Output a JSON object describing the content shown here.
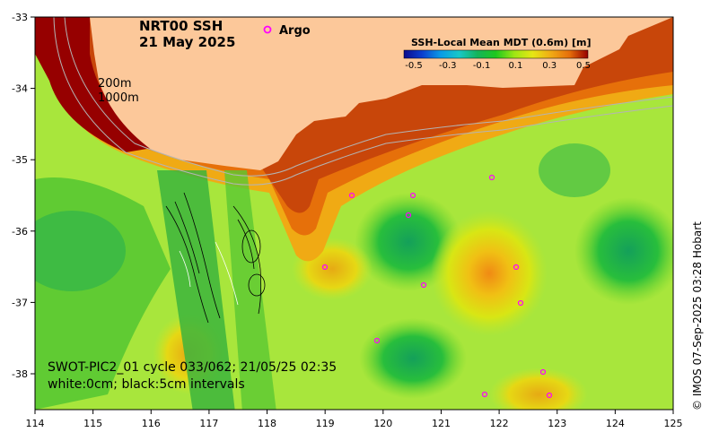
{
  "title": {
    "product": "NRT00 SSH",
    "date": "21 May 2025"
  },
  "legend": {
    "symbol": "o",
    "label": "Argo",
    "color": "#ff00ff"
  },
  "depth_labels": [
    "200m",
    "1000m"
  ],
  "colorbar": {
    "title": "SSH-Local Mean MDT (0.6m) [m]",
    "ticks": [
      "-0.5",
      "-0.3",
      "-0.1",
      "0.1",
      "0.3",
      "0.5"
    ],
    "colors": [
      "#0a0a8c",
      "#0a3fd0",
      "#0a9be6",
      "#18c8c8",
      "#14b45a",
      "#1ec81e",
      "#9ee614",
      "#e6e614",
      "#f0aa14",
      "#e66e0a",
      "#c83c0a",
      "#960000"
    ]
  },
  "axes": {
    "x_ticks": [
      "114",
      "115",
      "116",
      "117",
      "118",
      "119",
      "120",
      "121",
      "122",
      "123",
      "124",
      "125"
    ],
    "y_ticks": [
      "-33",
      "-34",
      "-35",
      "-36",
      "-37",
      "-38"
    ]
  },
  "swot_note": {
    "line1": "SWOT-PIC2_01 cycle 033/062; 21/05/25 02:35",
    "line2": "white:0cm; black:5cm intervals"
  },
  "credit": "© IMOS 07-Sep-2025 03:28 Hobart",
  "palette": {
    "land": "#fcc89a",
    "ocean_base": "#a8e63c"
  }
}
